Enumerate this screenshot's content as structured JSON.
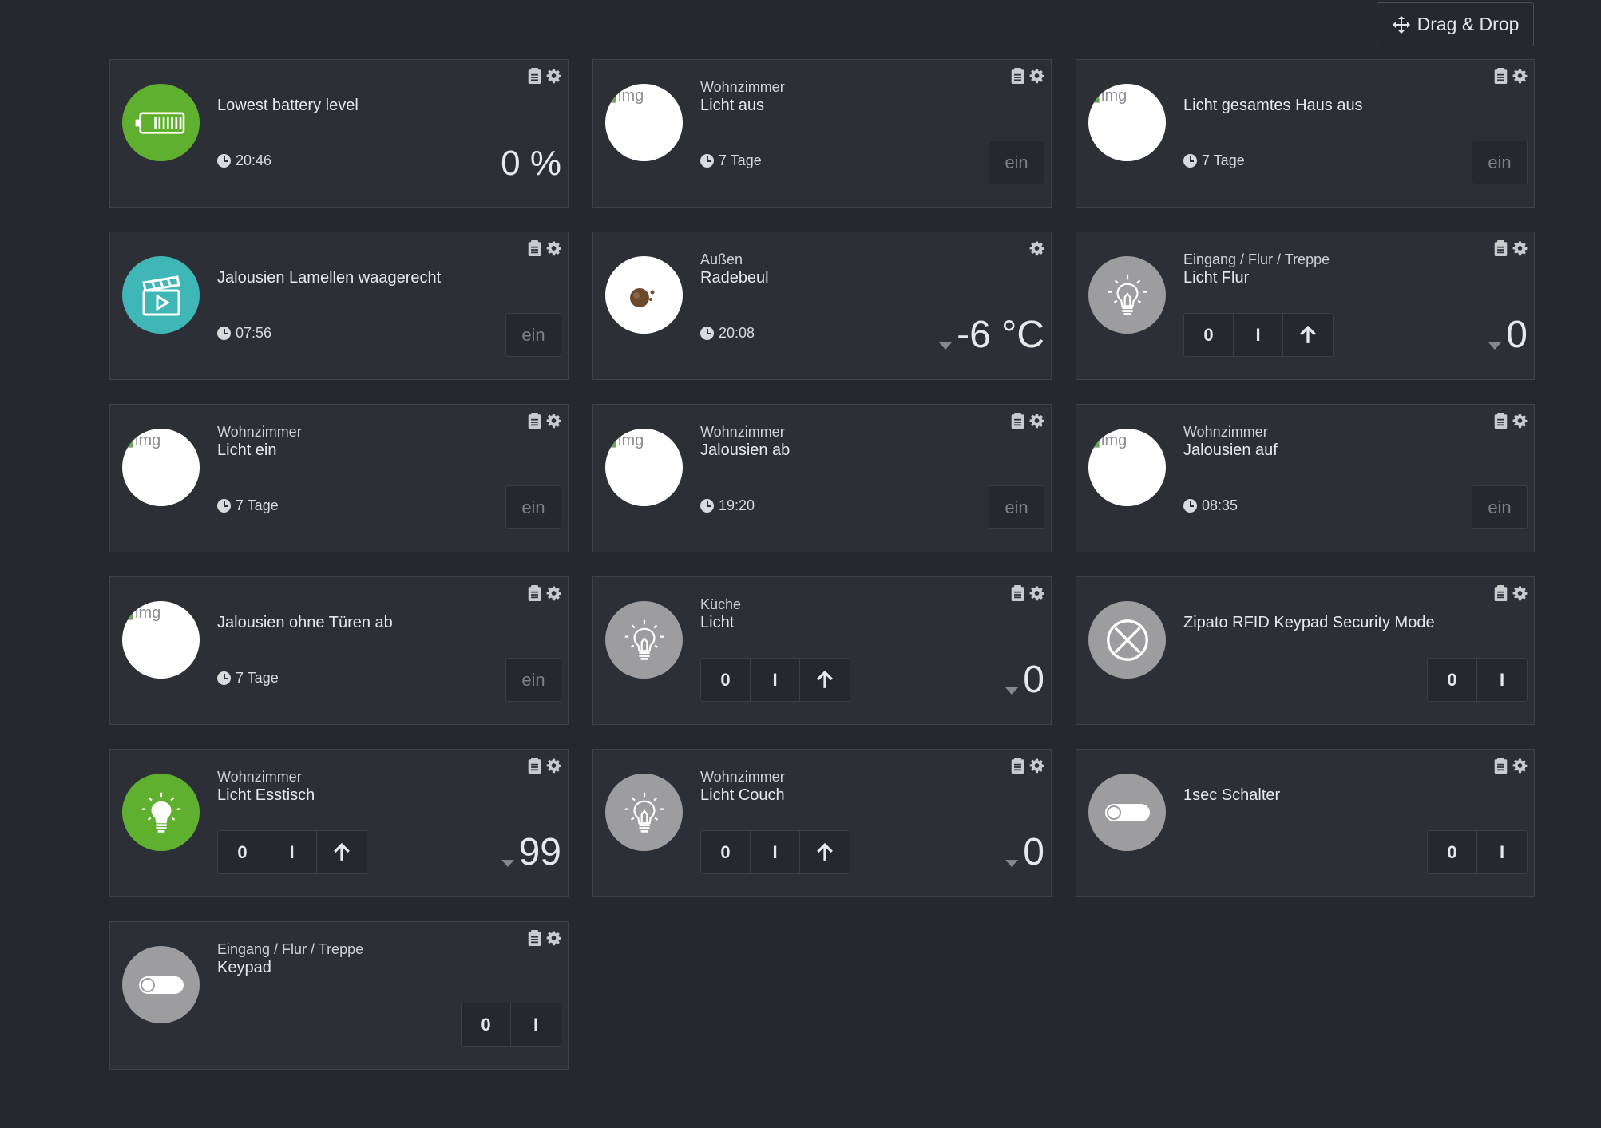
{
  "toolbar": {
    "drag_drop_label": "Drag & Drop"
  },
  "broken_image_alt": "img",
  "ein_label": "ein",
  "btn_labels": {
    "off": "0",
    "on": "I"
  },
  "cards": {
    "c1": {
      "room": "",
      "title": "Lowest battery level",
      "time": "20:46",
      "value": "0 %"
    },
    "c2": {
      "room": "Wohnzimmer",
      "title": "Licht aus",
      "time": "7 Tage"
    },
    "c3": {
      "room": "",
      "title": "Licht gesamtes Haus aus",
      "time": "7 Tage"
    },
    "c4": {
      "room": "",
      "title": "Jalousien Lamellen waagerecht",
      "time": "07:56"
    },
    "c5": {
      "room": "Außen",
      "title": "Radebeul",
      "time": "20:08",
      "value": "-6 °C"
    },
    "c6": {
      "room": "Eingang / Flur / Treppe",
      "title": "Licht Flur",
      "value": "0"
    },
    "c7": {
      "room": "Wohnzimmer",
      "title": "Licht ein",
      "time": "7 Tage"
    },
    "c8": {
      "room": "Wohnzimmer",
      "title": "Jalousien ab",
      "time": "19:20"
    },
    "c9": {
      "room": "Wohnzimmer",
      "title": "Jalousien auf",
      "time": "08:35"
    },
    "c10": {
      "room": "",
      "title": "Jalousien ohne Türen ab",
      "time": "7 Tage"
    },
    "c11": {
      "room": "Küche",
      "title": "Licht",
      "value": "0"
    },
    "c12": {
      "room": "",
      "title": "Zipato RFID Keypad Security Mode"
    },
    "c13": {
      "room": "Wohnzimmer",
      "title": "Licht Esstisch",
      "value": "99"
    },
    "c14": {
      "room": "Wohnzimmer",
      "title": "Licht Couch",
      "value": "0"
    },
    "c15": {
      "room": "",
      "title": "1sec Schalter"
    },
    "c16": {
      "room": "Eingang / Flur / Treppe",
      "title": "Keypad"
    }
  },
  "colors": {
    "background": "#26282d",
    "card": "#2c2f36",
    "green": "#5fb02f",
    "teal": "#3fb7b7",
    "grey_icon": "#9d9d9f"
  },
  "icons": [
    "move-icon",
    "clipboard-icon",
    "gear-icon",
    "clock-icon",
    "battery-icon",
    "clapperboard-icon",
    "weather-icon",
    "lightbulb-icon",
    "cross-circle-icon",
    "toggle-icon",
    "arrow-up-icon",
    "caret-down-icon"
  ]
}
